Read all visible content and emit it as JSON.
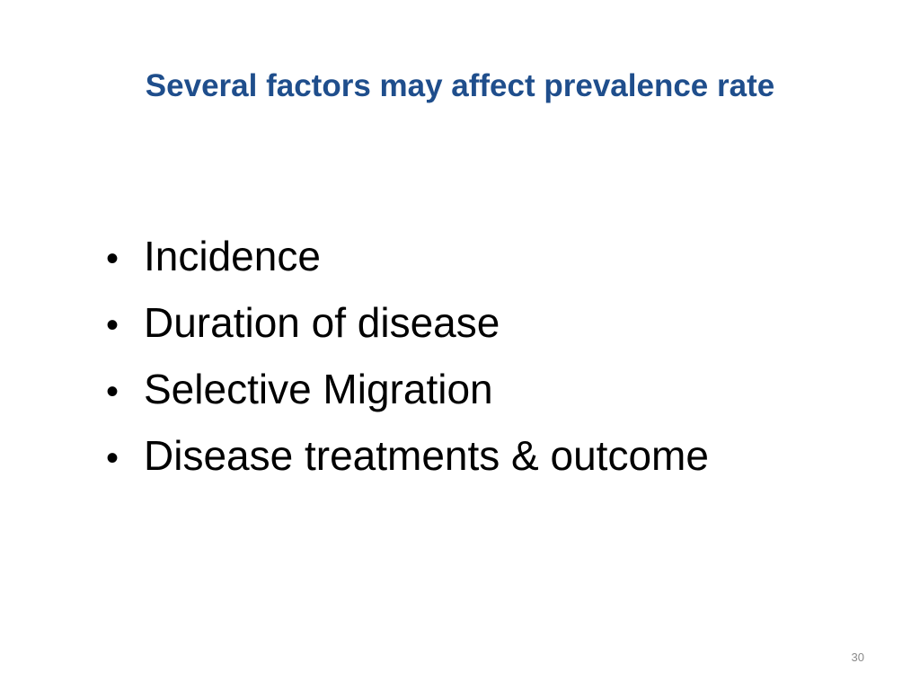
{
  "slide": {
    "title": "Several factors may affect prevalence rate",
    "title_color": "#1f4e8c",
    "bullet_glyph": "•",
    "bullets": [
      "Incidence",
      "Duration of disease",
      "Selective Migration",
      "Disease treatments & outcome"
    ],
    "page_number": "30"
  }
}
